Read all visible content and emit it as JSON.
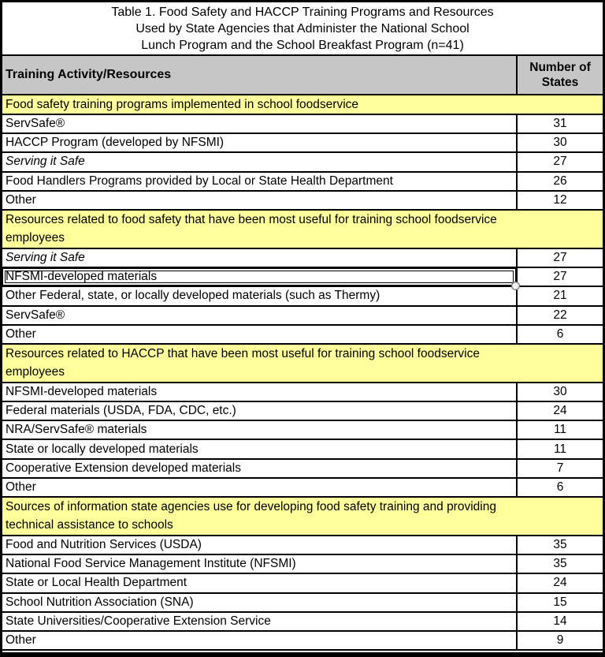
{
  "colors": {
    "section_background": "#FFFF9B",
    "header_background": "#C6C6C6",
    "border": "#000000",
    "text": "#000000"
  },
  "table": {
    "title_lines": [
      "Table 1. Food Safety and HACCP Training Programs and Resources",
      "Used by State Agencies that Administer the National School",
      "Lunch Program and the School Breakfast Program (n=41)"
    ],
    "header": {
      "activity_label": "Training Activity/Resources",
      "count_label": "Number of States"
    },
    "sections": [
      {
        "heading": "Food safety training programs implemented in school foodservice",
        "heading_lines": [
          "Food safety training programs implemented in school foodservice"
        ],
        "rows": [
          {
            "label": "ServSafe®",
            "value": "31"
          },
          {
            "label": "HACCP Program (developed by NFSMI)",
            "value": "30"
          },
          {
            "label": "Serving it Safe",
            "value": "27",
            "italic": true
          },
          {
            "label": "Food Handlers Programs provided by Local or State Health Department",
            "value": "26"
          },
          {
            "label": "Other",
            "value": "12"
          }
        ]
      },
      {
        "heading": "Resources related to food safety that have been most useful for training school foodservice employees",
        "heading_lines": [
          "Resources related to food safety that have been most useful for training school foodservice",
          "employees"
        ],
        "rows": [
          {
            "label": "Serving it Safe",
            "value": "27",
            "italic": true
          },
          {
            "label": "NFSMI-developed materials",
            "value": "27",
            "selected": true
          },
          {
            "label": "Other Federal, state, or locally developed materials (such as Thermy)",
            "value": "21"
          },
          {
            "label": "ServSafe®",
            "value": "22"
          },
          {
            "label": "Other",
            "value": "6"
          }
        ]
      },
      {
        "heading": "Resources related to HACCP that have been most useful for training school foodservice employees",
        "heading_lines": [
          "Resources related to HACCP that have been most useful for training school foodservice",
          "employees"
        ],
        "rows": [
          {
            "label": "NFSMI-developed materials",
            "value": "30"
          },
          {
            "label": "Federal materials (USDA, FDA, CDC, etc.)",
            "value": "24"
          },
          {
            "label": "NRA/ServSafe® materials",
            "value": "11"
          },
          {
            "label": "State or locally developed materials",
            "value": "11"
          },
          {
            "label": "Cooperative Extension developed materials",
            "value": "7"
          },
          {
            "label": "Other",
            "value": "6"
          }
        ]
      },
      {
        "heading": "Sources of information state agencies use for developing food safety training and providing technical assistance to schools",
        "heading_lines": [
          "Sources of information state agencies use for developing food safety training and providing",
          "technical assistance to schools"
        ],
        "rows": [
          {
            "label": "Food and Nutrition Services (USDA)",
            "value": "35"
          },
          {
            "label": "National Food Service Management Institute (NFSMI)",
            "value": "35"
          },
          {
            "label": "State or Local Health Department",
            "value": "24"
          },
          {
            "label": "School Nutrition Association (SNA)",
            "value": "15"
          },
          {
            "label": "State Universities/Cooperative Extension Service",
            "value": "14"
          },
          {
            "label": "Other",
            "value": "9"
          }
        ]
      }
    ]
  },
  "chart_data": {
    "type": "table",
    "title": "Table 1. Food Safety and HACCP Training Programs and Resources Used by State Agencies that Administer the National School Lunch Program and the School Breakfast Program (n=41)",
    "columns": [
      "Training Activity/Resources",
      "Number of States"
    ],
    "groups": [
      {
        "group": "Food safety training programs implemented in school foodservice",
        "categories": [
          "ServSafe®",
          "HACCP Program (developed by NFSMI)",
          "Serving it Safe",
          "Food Handlers Programs provided by Local or State Health Department",
          "Other"
        ],
        "values": [
          31,
          30,
          27,
          26,
          12
        ]
      },
      {
        "group": "Resources related to food safety that have been most useful for training school foodservice employees",
        "categories": [
          "Serving it Safe",
          "NFSMI-developed materials",
          "Other Federal, state, or locally developed materials (such as Thermy)",
          "ServSafe®",
          "Other"
        ],
        "values": [
          27,
          27,
          21,
          22,
          6
        ]
      },
      {
        "group": "Resources related to HACCP that have been most useful for training school foodservice employees",
        "categories": [
          "NFSMI-developed materials",
          "Federal materials (USDA, FDA, CDC, etc.)",
          "NRA/ServSafe® materials",
          "State or locally developed materials",
          "Cooperative Extension developed materials",
          "Other"
        ],
        "values": [
          30,
          24,
          11,
          11,
          7,
          6
        ]
      },
      {
        "group": "Sources of information state agencies use for developing food safety training and providing technical assistance to schools",
        "categories": [
          "Food and Nutrition Services (USDA)",
          "National Food Service Management Institute (NFSMI)",
          "State or Local Health Department",
          "School Nutrition Association (SNA)",
          "State Universities/Cooperative Extension Service",
          "Other"
        ],
        "values": [
          35,
          35,
          24,
          15,
          14,
          9
        ]
      }
    ]
  }
}
